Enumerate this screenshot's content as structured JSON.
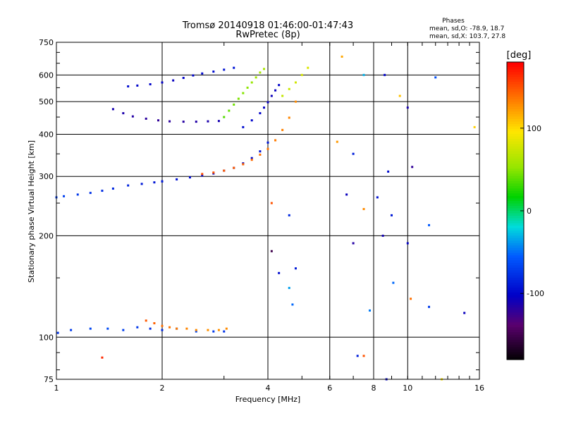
{
  "chart_data": {
    "type": "scatter",
    "title": "Tromsø 20140918 01:46:00-01:47:43",
    "subtitle": "RwPretec (8p)",
    "xlabel": "Frequency [MHz]",
    "ylabel": "Stationary phase Virtual Height [km]",
    "x_scale": "log",
    "y_scale": "log",
    "xlim": [
      1,
      16
    ],
    "ylim": [
      75,
      750
    ],
    "x_ticks": [
      1,
      2,
      4,
      6,
      8,
      10,
      16
    ],
    "y_ticks": [
      75,
      100,
      200,
      300,
      400,
      500,
      600,
      750
    ],
    "grid": true,
    "stats": {
      "heading": "Phases",
      "line_o": "mean, sd,O: -78.9, 18.7",
      "line_x": "mean, sd,X: 103.7, 27.8"
    },
    "colorbar": {
      "label": "[deg]",
      "range": [
        -180,
        180
      ],
      "ticks": [
        -100,
        0,
        100
      ],
      "colormap": "rainbow"
    },
    "traces": [
      {
        "x": [
          1.01,
          1.1,
          1.25,
          1.4,
          1.55,
          1.7,
          1.85,
          2.0,
          2.2,
          2.5,
          2.8,
          3.0
        ],
        "y": [
          103,
          105,
          106,
          106,
          105,
          107,
          106,
          105,
          106,
          104,
          104,
          104
        ],
        "phase": [
          -75,
          -70,
          -65,
          -62,
          -68,
          -72,
          -78,
          -80,
          -70,
          -65,
          -72,
          -75
        ]
      },
      {
        "x": [
          1.8,
          1.9,
          2.0,
          2.1,
          2.2,
          2.35,
          2.5,
          2.7,
          2.9,
          3.05
        ],
        "y": [
          112,
          110,
          108,
          107,
          106,
          106,
          105,
          105,
          105,
          106
        ],
        "phase": [
          148,
          145,
          140,
          138,
          135,
          132,
          130,
          128,
          128,
          130
        ]
      },
      {
        "x": [
          1.0,
          1.05,
          1.15,
          1.25,
          1.35,
          1.45,
          1.6,
          1.75,
          1.9,
          2.0
        ],
        "y": [
          260,
          262,
          265,
          268,
          272,
          276,
          282,
          285,
          288,
          290
        ],
        "phase": [
          -70,
          -68,
          -72,
          -75,
          -78,
          -80,
          -82,
          -88,
          -90,
          -92
        ]
      },
      {
        "x": [
          2.0,
          2.2,
          2.4,
          2.6,
          2.8,
          3.0,
          3.2,
          3.4,
          3.6,
          3.8,
          4.0
        ],
        "y": [
          290,
          294,
          298,
          302,
          306,
          312,
          318,
          328,
          340,
          356,
          378
        ],
        "phase": [
          -88,
          -92,
          -95,
          -98,
          -100,
          -102,
          -100,
          -98,
          -95,
          -92,
          -90
        ]
      },
      {
        "x": [
          2.6,
          2.8,
          3.0,
          3.2,
          3.4,
          3.6,
          3.8,
          4.0,
          4.2,
          4.4,
          4.6,
          4.8
        ],
        "y": [
          305,
          308,
          312,
          318,
          326,
          336,
          348,
          362,
          384,
          412,
          448,
          500
        ],
        "phase": [
          152,
          150,
          148,
          146,
          144,
          142,
          140,
          138,
          136,
          134,
          132,
          130
        ]
      },
      {
        "x": [
          1.45,
          1.55,
          1.65,
          1.8,
          1.95,
          2.1,
          2.3,
          2.5,
          2.7,
          2.9
        ],
        "y": [
          475,
          462,
          452,
          445,
          440,
          437,
          436,
          436,
          437,
          438
        ],
        "phase": [
          -110,
          -112,
          -115,
          -118,
          -120,
          -118,
          -116,
          -114,
          -112,
          -110
        ]
      },
      {
        "x": [
          1.6,
          1.7,
          1.85,
          2.0,
          2.15,
          2.3,
          2.45,
          2.6,
          2.8,
          3.0,
          3.2
        ],
        "y": [
          555,
          558,
          563,
          570,
          578,
          588,
          598,
          606,
          614,
          622,
          630
        ],
        "phase": [
          -95,
          -98,
          -100,
          -102,
          -104,
          -100,
          -98,
          -96,
          -94,
          -92,
          -90
        ]
      },
      {
        "x": [
          3.0,
          3.1,
          3.2,
          3.3,
          3.4,
          3.5,
          3.6,
          3.7,
          3.8,
          3.9
        ],
        "y": [
          450,
          470,
          490,
          510,
          530,
          550,
          570,
          590,
          610,
          625
        ],
        "phase": [
          38,
          42,
          45,
          48,
          50,
          52,
          55,
          58,
          60,
          62
        ]
      },
      {
        "x": [
          3.4,
          3.6,
          3.8,
          3.9,
          4.0,
          4.1,
          4.2,
          4.3
        ],
        "y": [
          420,
          440,
          462,
          480,
          498,
          520,
          540,
          560
        ],
        "phase": [
          -95,
          -98,
          -100,
          -102,
          -104,
          -106,
          -104,
          -100
        ]
      },
      {
        "x": [
          4.4,
          4.6,
          4.8,
          5.0,
          5.2
        ],
        "y": [
          520,
          545,
          570,
          600,
          630
        ],
        "phase": [
          72,
          75,
          78,
          80,
          82
        ]
      }
    ],
    "scatter_points": [
      {
        "x": 6.5,
        "y": 680,
        "phase": 120
      },
      {
        "x": 7.5,
        "y": 600,
        "phase": -30
      },
      {
        "x": 8.6,
        "y": 600,
        "phase": -100
      },
      {
        "x": 9.5,
        "y": 520,
        "phase": 110
      },
      {
        "x": 12,
        "y": 590,
        "phase": -60
      },
      {
        "x": 10,
        "y": 480,
        "phase": -110
      },
      {
        "x": 6.3,
        "y": 380,
        "phase": 125
      },
      {
        "x": 7,
        "y": 350,
        "phase": -85
      },
      {
        "x": 8.8,
        "y": 310,
        "phase": -95
      },
      {
        "x": 10.3,
        "y": 320,
        "phase": -120
      },
      {
        "x": 6.7,
        "y": 265,
        "phase": -105
      },
      {
        "x": 7.5,
        "y": 240,
        "phase": 130
      },
      {
        "x": 8.2,
        "y": 260,
        "phase": -92
      },
      {
        "x": 9,
        "y": 230,
        "phase": -88
      },
      {
        "x": 11.5,
        "y": 215,
        "phase": -55
      },
      {
        "x": 4.6,
        "y": 230,
        "phase": -80
      },
      {
        "x": 4.1,
        "y": 250,
        "phase": 150
      },
      {
        "x": 7,
        "y": 190,
        "phase": -115
      },
      {
        "x": 8.5,
        "y": 200,
        "phase": -108
      },
      {
        "x": 10,
        "y": 190,
        "phase": -102
      },
      {
        "x": 4.3,
        "y": 155,
        "phase": -95
      },
      {
        "x": 4.8,
        "y": 160,
        "phase": -88
      },
      {
        "x": 4.6,
        "y": 140,
        "phase": -35
      },
      {
        "x": 4.7,
        "y": 125,
        "phase": -50
      },
      {
        "x": 7.8,
        "y": 120,
        "phase": -45
      },
      {
        "x": 9.1,
        "y": 145,
        "phase": -50
      },
      {
        "x": 10.2,
        "y": 130,
        "phase": 140
      },
      {
        "x": 11.5,
        "y": 123,
        "phase": -70
      },
      {
        "x": 14.5,
        "y": 118,
        "phase": -105
      },
      {
        "x": 7.2,
        "y": 88,
        "phase": -85
      },
      {
        "x": 7.5,
        "y": 88,
        "phase": 150
      },
      {
        "x": 8.7,
        "y": 75,
        "phase": -100
      },
      {
        "x": 15.5,
        "y": 420,
        "phase": 105
      },
      {
        "x": 12.5,
        "y": 75,
        "phase": 95
      },
      {
        "x": 4.1,
        "y": 180,
        "phase": -150
      },
      {
        "x": 1.35,
        "y": 87,
        "phase": 165
      }
    ]
  }
}
